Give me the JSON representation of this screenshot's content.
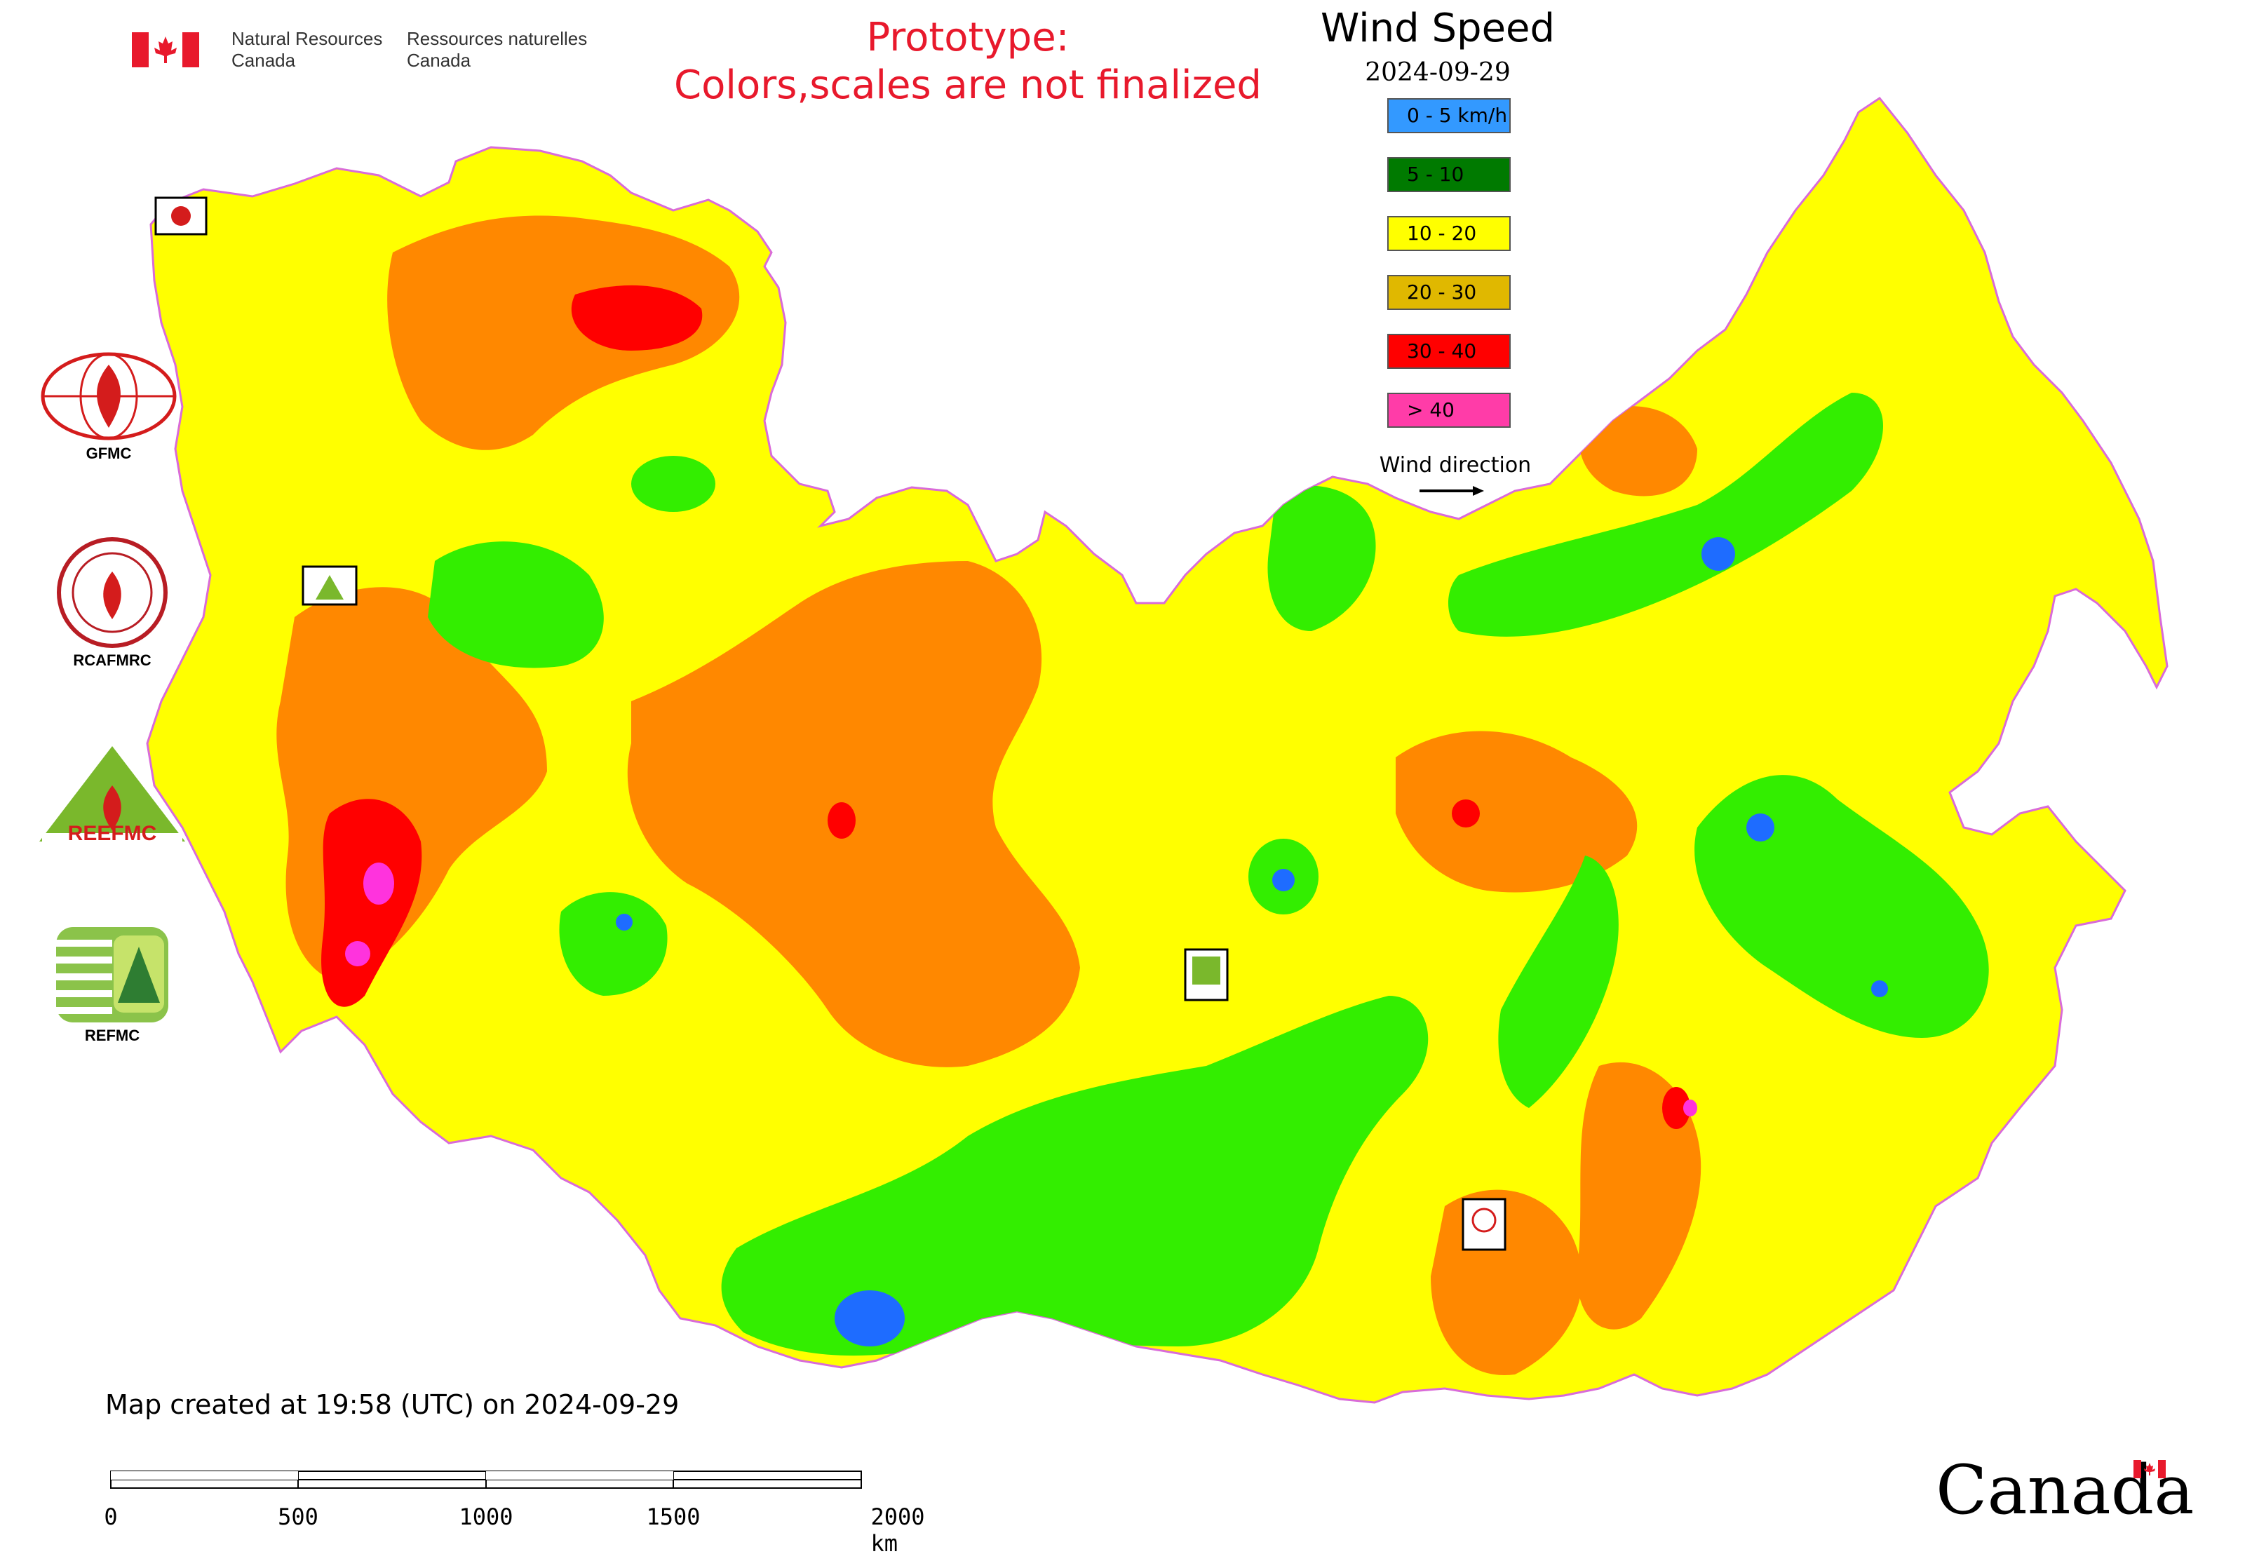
{
  "header": {
    "nrcan_en": [
      "Natural Resources",
      "Canada"
    ],
    "nrcan_fr": [
      "Ressources naturelles",
      "Canada"
    ],
    "prototype_line1": "Prototype:",
    "prototype_line2": "Colors,scales are not finalized"
  },
  "legend": {
    "title": "Wind Speed",
    "date": "2024-09-29",
    "classes": [
      {
        "label": "0 - 5 km/h",
        "color": "#3399ff"
      },
      {
        "label": "5 - 10",
        "color": "#007a00"
      },
      {
        "label": "10 - 20",
        "color": "#ffff00"
      },
      {
        "label": "20 - 30",
        "color": "#e0b800"
      },
      {
        "label": "30 - 40",
        "color": "#ff0000"
      },
      {
        "label": "> 40",
        "color": "#ff3ca8"
      }
    ],
    "direction_label": "Wind direction"
  },
  "map_palette": {
    "green": "#33ee00",
    "yellow": "#ffff00",
    "orange": "#ff8800",
    "red": "#ff0000",
    "magenta": "#ff33dd",
    "blue": "#1e6cff",
    "border": "#d96bd9"
  },
  "logos": {
    "gfmc": "GFMC",
    "rcafmrc": "RCAFMRC",
    "reefmc": "REEFMC",
    "refmc": "REFMC",
    "gfmc_small": "GFMC",
    "refmc_small": "REFMC",
    "rcafmrc_small": "RCAFMRC"
  },
  "footer": {
    "created": "Map created at 19:58 (UTC) on 2024-09-29",
    "scale_labels": [
      "0",
      "500",
      "1000",
      "1500",
      "2000 km"
    ],
    "wordmark": "Canada"
  }
}
